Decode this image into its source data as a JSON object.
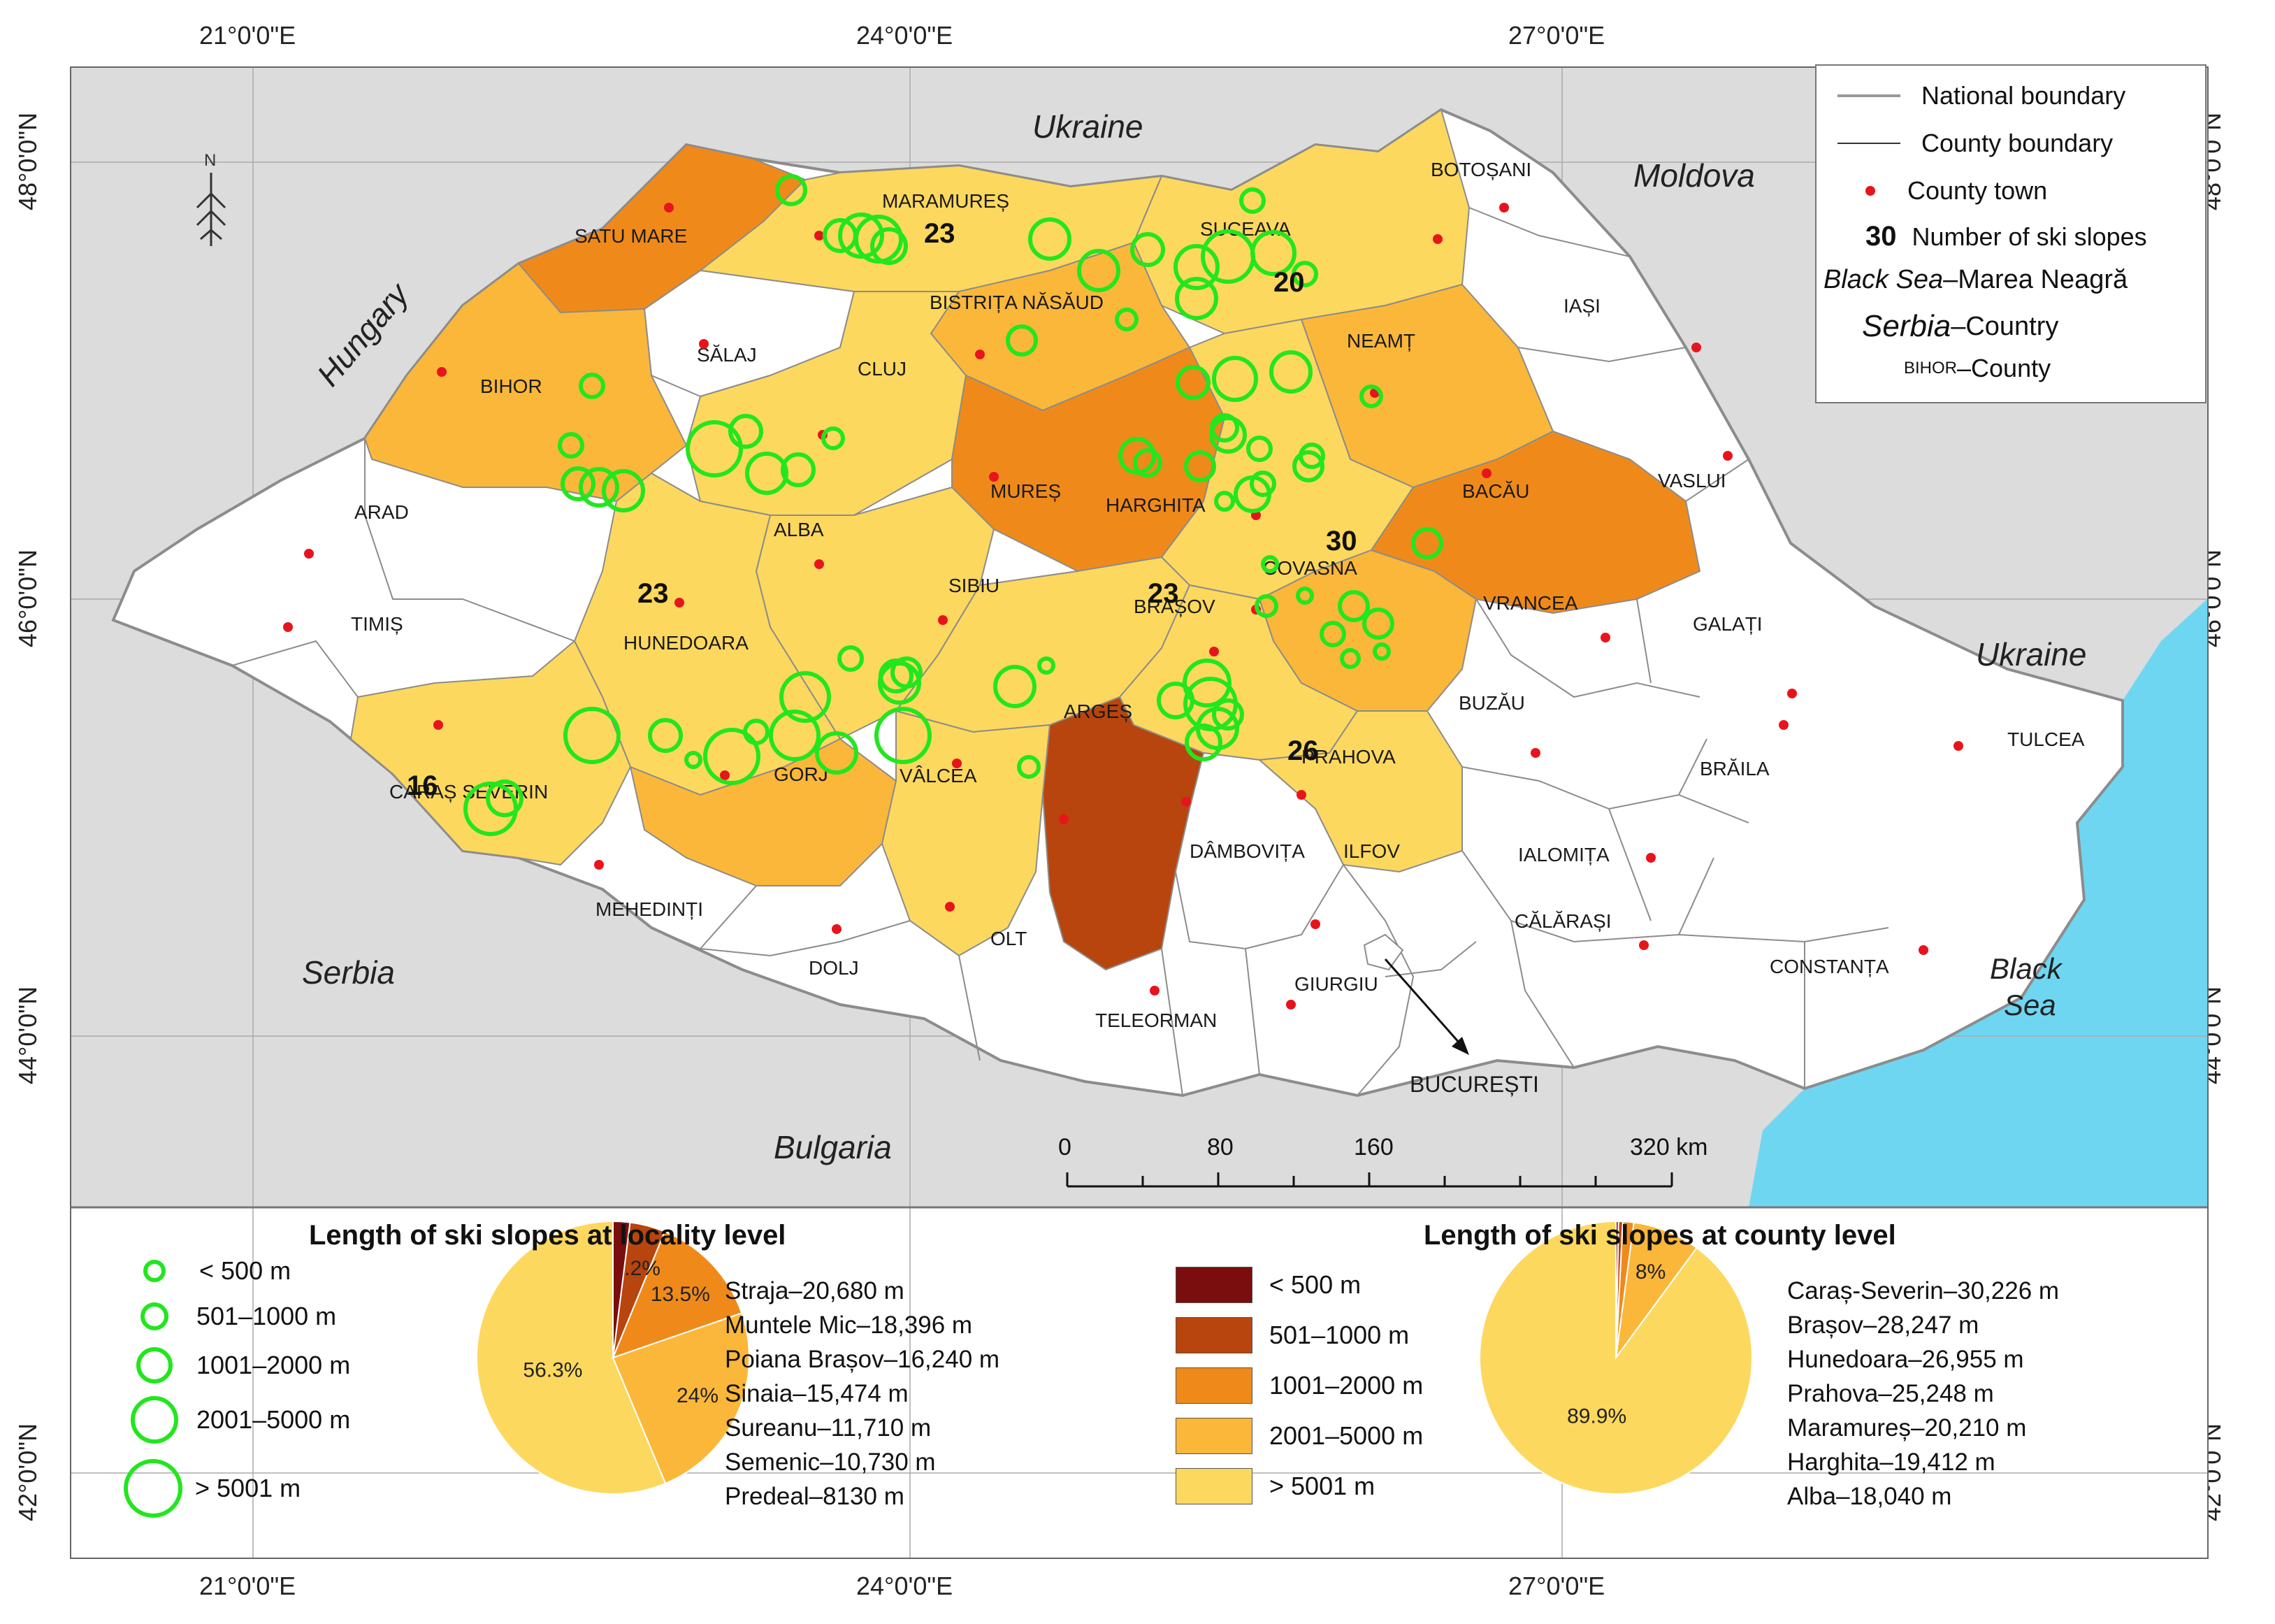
{
  "graticule": {
    "top": [
      "21°0'0\"E",
      "24°0'0\"E",
      "27°0'0\"E"
    ],
    "bottom": [
      "21°0'0\"E",
      "24°0'0\"E",
      "27°0'0\"E"
    ],
    "left": [
      "48°0'0\"N",
      "46°0'0\"N",
      "44°0'0\"N",
      "42°0'0\"N"
    ],
    "right": [
      "48°0'0\"N",
      "46°0'0\"N",
      "44°0'0\"N",
      "42°0'0\"N"
    ]
  },
  "countries": {
    "ukraine_north": "Ukraine",
    "moldova": "Moldova",
    "hungary": "Hungary",
    "ukraine_east": "Ukraine",
    "serbia": "Serbia",
    "bulgaria": "Bulgaria",
    "black_sea_1": "Black",
    "black_sea_2": "Sea"
  },
  "counties": {
    "satu_mare": "SATU MARE",
    "maramures": "MARAMUREȘ",
    "suceava": "SUCEAVA",
    "botosani": "BOTOȘANI",
    "bistrita": "BISTRIȚA NĂSĂUD",
    "salaj": "SĂLAJ",
    "iasi": "IAȘI",
    "neamt": "NEAMȚ",
    "bihor": "BIHOR",
    "cluj": "CLUJ",
    "mures": "MUREȘ",
    "harghita": "HARGHITA",
    "bacau": "BACĂU",
    "vaslui": "VASLUI",
    "arad": "ARAD",
    "alba": "ALBA",
    "covasna": "COVASNA",
    "timis": "TIMIȘ",
    "hunedoara": "HUNEDOARA",
    "sibiu": "SIBIU",
    "brasov": "BRAȘOV",
    "vrancea": "VRANCEA",
    "galati": "GALAȚI",
    "arges": "ARGEȘ",
    "buzau": "BUZĂU",
    "caras": "CARAȘ SEVERIN",
    "gorj": "GORJ",
    "valcea": "VÂLCEA",
    "prahova": "PRAHOVA",
    "braila": "BRĂILA",
    "tulcea": "TULCEA",
    "dambovita": "DÂMBOVIȚA",
    "ilfov": "ILFOV",
    "ialomita": "IALOMIȚA",
    "mehedinti": "MEHEDINȚI",
    "calarasi": "CĂLĂRAȘI",
    "dolj": "DOLJ",
    "olt": "OLT",
    "constanta": "CONSTANȚA",
    "giurgiu": "GIURGIU",
    "teleorman": "TELEORMAN",
    "bucuresti": "BUCUREȘTI"
  },
  "slope_counts": {
    "maramures": "23",
    "suceava": "20",
    "harghita": "30",
    "hunedoara": "23",
    "brasov": "23",
    "prahova": "26",
    "caras": "16"
  },
  "legend": {
    "national_boundary": "National boundary",
    "county_boundary": "County boundary",
    "county_town": "County town",
    "count_sample": "30",
    "count_label": "Number of ski slopes",
    "sea_example": "Black Sea",
    "sea_example_suffix": "–Marea Neagră",
    "country_example": "Serbia",
    "country_example_suffix": "–Country",
    "county_example": "BIHOR",
    "county_example_suffix": "–County"
  },
  "scale_bar": {
    "labels": [
      "0",
      "80",
      "160",
      "320 km"
    ]
  },
  "locality_panel": {
    "title": "Length of ski slopes at locality level",
    "classes": [
      "< 500 m",
      "501–1000 m",
      "1001–2000 m",
      "2001–5000 m",
      "> 5001 m"
    ],
    "top_list": [
      "Straja–20,680 m",
      "Muntele Mic–18,396 m",
      "Poiana Brașov–16,240 m",
      "Sinaia–15,474 m",
      "Sureanu–11,710 m",
      "Semenic–10,730 m",
      "Predeal–8130 m"
    ]
  },
  "county_panel": {
    "title": "Length of ski slopes at county level",
    "classes": [
      "< 500 m",
      "501–1000 m",
      "1001–2000 m",
      "2001–5000 m",
      "> 5001 m"
    ],
    "top_list": [
      "Caraș-Severin–30,226 m",
      "Brașov–28,247 m",
      "Hunedoara–26,955 m",
      "Prahova–25,248 m",
      "Maramureș–20,210 m",
      "Harghita–19,412 m",
      "Alba–18,040 m"
    ]
  },
  "chart_data": [
    {
      "type": "pie",
      "title": "Length of ski slopes at locality level",
      "categories": [
        "> 5001 m",
        "2001–5000 m",
        "1001–2000 m",
        "501–1000 m",
        "< 500 m"
      ],
      "values": [
        56.3,
        24,
        13.5,
        4.2,
        2.0
      ],
      "labels": [
        "56.3%",
        "24%",
        "13.5%",
        "4.2%",
        ""
      ],
      "colors": [
        "#fdd85e",
        "#fbb73a",
        "#ef8a1a",
        "#b8450d",
        "#7a0d0d"
      ]
    },
    {
      "type": "pie",
      "title": "Length of ski slopes at county level",
      "categories": [
        "> 5001 m",
        "2001–5000 m",
        "1001–2000 m",
        "501–1000 m",
        "< 500 m"
      ],
      "values": [
        89.9,
        8,
        1.3,
        0.5,
        0.3
      ],
      "labels": [
        "89.9%",
        "8%",
        "",
        "",
        ""
      ],
      "colors": [
        "#fdd85e",
        "#fbb73a",
        "#ef8a1a",
        "#b8450d",
        "#7a0d0d"
      ]
    }
  ],
  "colors": {
    "class_1": "#7a0d0d",
    "class_2": "#b8450d",
    "class_3": "#ef8a1a",
    "class_4": "#fbb73a",
    "class_5": "#fdd85e",
    "ring": "#22e61e",
    "town": "#e8141c",
    "sea": "#6fd6f2",
    "neighbors": "#dcdcdc"
  }
}
